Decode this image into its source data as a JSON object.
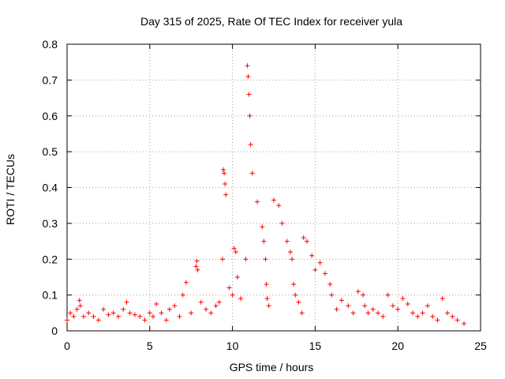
{
  "chart_data": {
    "type": "scatter",
    "title": "Day 315 of 2025, Rate Of TEC Index for receiver yula",
    "xlabel": "GPS time / hours",
    "ylabel": "ROTI / TECUs",
    "xlim": [
      0,
      25
    ],
    "ylim": [
      0,
      0.8
    ],
    "xticks": [
      0,
      5,
      10,
      15,
      20,
      25
    ],
    "xtick_labels": [
      "0",
      "5",
      "10",
      "15",
      "20",
      "25"
    ],
    "yticks": [
      0,
      0.1,
      0.2,
      0.3,
      0.4,
      0.5,
      0.6,
      0.7,
      0.8
    ],
    "ytick_labels": [
      "0",
      "0.1",
      "0.2",
      "0.3",
      "0.4",
      "0.5",
      "0.6",
      "0.7",
      "0.8"
    ],
    "grid": true,
    "marker": "+",
    "color": "#ff0000",
    "series": [
      {
        "x": [
          0.0,
          0.2,
          0.4,
          0.6,
          0.75,
          0.8,
          1.0,
          1.3,
          1.6,
          1.9,
          2.2,
          2.5,
          2.8,
          3.1,
          3.4,
          3.6,
          3.8,
          4.1,
          4.4,
          4.7,
          5.0,
          5.2,
          5.4,
          5.7,
          6.0,
          6.2,
          6.5,
          6.8,
          7.0,
          7.2,
          7.5,
          7.8,
          7.85,
          7.9,
          8.1,
          8.4,
          8.7,
          9.0,
          9.2,
          9.4,
          9.45,
          9.5,
          9.55,
          9.6,
          9.8,
          10.0,
          10.1,
          10.2,
          10.3,
          10.5,
          10.8,
          10.9,
          10.95,
          11.0,
          11.05,
          11.1,
          11.2,
          11.5,
          11.8,
          11.9,
          12.0,
          12.05,
          12.1,
          12.2,
          12.5,
          12.8,
          13.0,
          13.3,
          13.5,
          13.6,
          13.7,
          13.8,
          14.0,
          14.2,
          14.3,
          14.5,
          14.8,
          15.0,
          15.3,
          15.6,
          15.9,
          16.0,
          16.3,
          16.6,
          17.0,
          17.3,
          17.6,
          17.9,
          18.0,
          18.2,
          18.5,
          18.8,
          19.1,
          19.4,
          19.7,
          20.0,
          20.3,
          20.6,
          20.9,
          21.2,
          21.5,
          21.8,
          22.1,
          22.4,
          22.7,
          23.0,
          23.3,
          23.6,
          24.0
        ],
        "y": [
          0.03,
          0.05,
          0.04,
          0.06,
          0.085,
          0.07,
          0.04,
          0.05,
          0.04,
          0.03,
          0.06,
          0.045,
          0.05,
          0.04,
          0.06,
          0.08,
          0.05,
          0.045,
          0.04,
          0.03,
          0.05,
          0.04,
          0.075,
          0.05,
          0.03,
          0.06,
          0.07,
          0.04,
          0.1,
          0.135,
          0.05,
          0.18,
          0.195,
          0.17,
          0.08,
          0.06,
          0.05,
          0.07,
          0.08,
          0.2,
          0.45,
          0.44,
          0.41,
          0.38,
          0.12,
          0.1,
          0.23,
          0.22,
          0.15,
          0.09,
          0.2,
          0.74,
          0.71,
          0.66,
          0.6,
          0.52,
          0.44,
          0.36,
          0.29,
          0.25,
          0.2,
          0.13,
          0.09,
          0.07,
          0.365,
          0.35,
          0.3,
          0.25,
          0.22,
          0.2,
          0.13,
          0.1,
          0.08,
          0.05,
          0.26,
          0.25,
          0.21,
          0.17,
          0.19,
          0.16,
          0.13,
          0.1,
          0.06,
          0.085,
          0.07,
          0.05,
          0.11,
          0.1,
          0.07,
          0.05,
          0.06,
          0.05,
          0.04,
          0.1,
          0.07,
          0.06,
          0.09,
          0.075,
          0.05,
          0.04,
          0.05,
          0.07,
          0.04,
          0.03,
          0.09,
          0.05,
          0.04,
          0.03,
          0.02
        ]
      }
    ]
  }
}
